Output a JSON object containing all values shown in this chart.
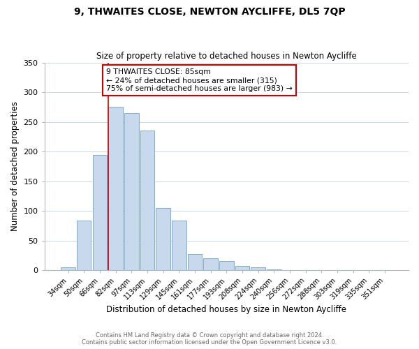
{
  "title": "9, THWAITES CLOSE, NEWTON AYCLIFFE, DL5 7QP",
  "subtitle": "Size of property relative to detached houses in Newton Aycliffe",
  "xlabel": "Distribution of detached houses by size in Newton Aycliffe",
  "ylabel": "Number of detached properties",
  "bar_color": "#c9d9ed",
  "bar_edge_color": "#7bafd4",
  "grid_color": "#c8d8e8",
  "annotation_box_edge": "#cc0000",
  "vline_color": "#cc0000",
  "categories": [
    "34sqm",
    "50sqm",
    "66sqm",
    "82sqm",
    "97sqm",
    "113sqm",
    "129sqm",
    "145sqm",
    "161sqm",
    "177sqm",
    "193sqm",
    "208sqm",
    "224sqm",
    "240sqm",
    "256sqm",
    "272sqm",
    "288sqm",
    "303sqm",
    "319sqm",
    "335sqm",
    "351sqm"
  ],
  "values": [
    5,
    84,
    194,
    275,
    265,
    236,
    105,
    84,
    28,
    20,
    16,
    7,
    5,
    2,
    0,
    0,
    0,
    0,
    0,
    1,
    0
  ],
  "vline_bar_index": 3,
  "annotation_title": "9 THWAITES CLOSE: 85sqm",
  "annotation_line1": "← 24% of detached houses are smaller (315)",
  "annotation_line2": "75% of semi-detached houses are larger (983) →",
  "ylim": [
    0,
    350
  ],
  "yticks": [
    0,
    50,
    100,
    150,
    200,
    250,
    300,
    350
  ],
  "footer1": "Contains HM Land Registry data © Crown copyright and database right 2024.",
  "footer2": "Contains public sector information licensed under the Open Government Licence v3.0.",
  "figsize": [
    6.0,
    5.0
  ],
  "dpi": 100
}
